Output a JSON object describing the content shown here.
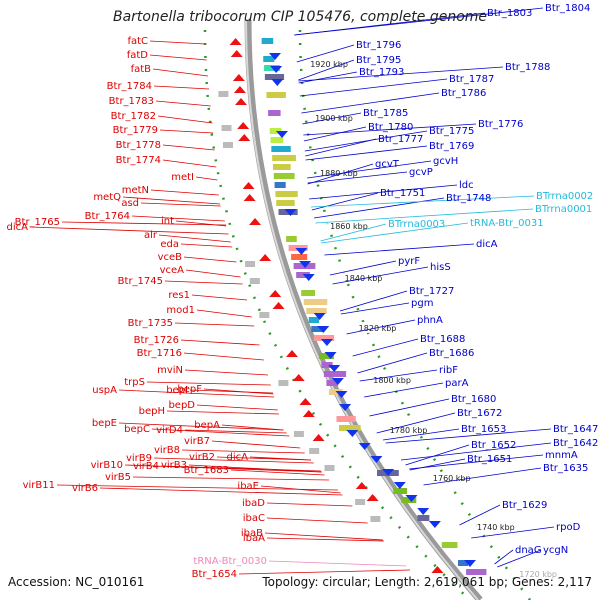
{
  "title": "Bartonella tribocorum CIP 105476, complete genome",
  "accession": "Accession: NC_010161",
  "topology": "Topology: circular; Length: 2,619,061 bp; Genes: 2,117",
  "colors": {
    "left_labels": "#dd0000",
    "right_labels": "#0000cc",
    "rna_labels": "#22bbdd",
    "trna_left": "#ee88bb",
    "backbone": "#9a9a9a",
    "track_dots": "#2a9a2a"
  },
  "kbp_marks": [
    "1920 kbp",
    "1900 kbp",
    "1880 kbp",
    "1860 kbp",
    "1840 kbp",
    "1820 kbp",
    "1800 kbp",
    "1780 kbp",
    "1760 kbp",
    "1740 kbp",
    "1720 kbp"
  ],
  "left_labels": [
    "fatC",
    "fatD",
    "fatB",
    "Btr_1784",
    "Btr_1783",
    "Btr_1782",
    "Btr_1779",
    "Btr_1778",
    "Btr_1774",
    "metI",
    "metN",
    "metQ",
    "asd",
    "Btr_1764",
    "dicA",
    "Btr_1765",
    "int",
    "alr",
    "eda",
    "vceB",
    "vceA",
    "Btr_1745",
    "res1",
    "mod1",
    "Btr_1735",
    "Btr_1726",
    "Btr_1716",
    "trpS",
    "mviN",
    "uspA",
    "bepI",
    "bepF",
    "bepE",
    "bepH",
    "bepD",
    "bepC",
    "virD4",
    "bepA",
    "virB7",
    "virB8",
    "virB9",
    "virB10",
    "virB2",
    "virB11",
    "virB6",
    "virB5",
    "virB4",
    "virB3",
    "dicA",
    "Btr_1683",
    "ibaE",
    "ibaD",
    "ibaC",
    "ibaB",
    "ibaA",
    "tRNA-Btr_0030",
    "Btr_1654"
  ],
  "right_labels": [
    "Btr_1803",
    "Btr_1804",
    "Btr_1796",
    "Btr_1795",
    "Btr_1793",
    "Btr_1788",
    "Btr_1787",
    "Btr_1786",
    "Btr_1785",
    "Btr_1780",
    "Btr_1777",
    "Btr_1775",
    "Btr_1776",
    "Btr_1769",
    "gcvH",
    "gcvT",
    "gcvP",
    "ldc",
    "Btr_1751",
    "Btr_1748",
    "BTrrna0002",
    "BTrrna0001",
    "BTrrna0003",
    "tRNA-Btr_0031",
    "dicA",
    "pyrF",
    "hisS",
    "Btr_1727",
    "pgm",
    "phnA",
    "Btr_1688",
    "Btr_1686",
    "ribF",
    "parA",
    "Btr_1680",
    "Btr_1672",
    "Btr_1653",
    "Btr_1647",
    "Btr_1642",
    "Btr_1652",
    "Btr_1651",
    "mnmA",
    "Btr_1635",
    "Btr_1629",
    "rpoD",
    "dnaG",
    "ycgN"
  ]
}
